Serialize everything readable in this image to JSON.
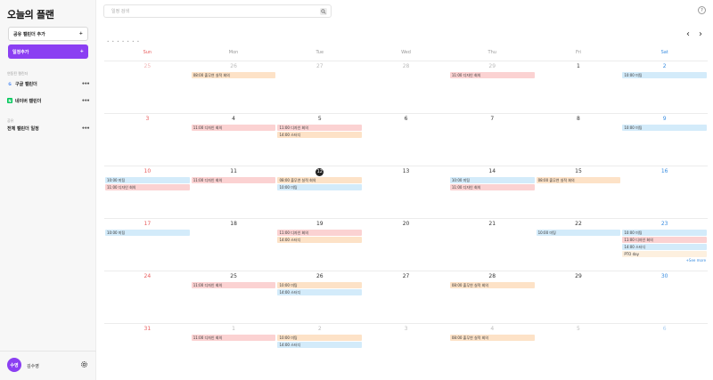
{
  "sidebar": {
    "title": "오늘의 플랜",
    "shared_button": "공유 캘린더 추가",
    "shared_button_icon": "+",
    "add_button": "일정추가",
    "add_button_icon": "+",
    "section_linked": "연동된 캘린더",
    "calendars": [
      {
        "badge": "G",
        "label": "구글 캘린더",
        "more": "•••"
      },
      {
        "badge": "N",
        "label": "네이버 캘린더",
        "more": "•••"
      }
    ],
    "section_all": "공유",
    "all_calendars": {
      "label": "전체 캘린더 일정",
      "more": "•••"
    },
    "user": {
      "avatar": "수영",
      "name": "김수영"
    }
  },
  "topbar": {
    "search_placeholder": "일정 검색",
    "help": "?"
  },
  "nav": {
    "prev": "‹",
    "next": "›",
    "dots": "• • • • • • •"
  },
  "weekdays": [
    "Sun",
    "Mon",
    "Tue",
    "Wed",
    "Thu",
    "Fri",
    "Sat"
  ],
  "weeks": [
    {
      "days": [
        {
          "date": "25",
          "muted": true,
          "events": []
        },
        {
          "date": "26",
          "muted": true,
          "events": [
            {
              "text": "08:00 출무연 실적 회의",
              "color": "orange"
            }
          ]
        },
        {
          "date": "27",
          "muted": true,
          "events": []
        },
        {
          "date": "28",
          "muted": true,
          "events": []
        },
        {
          "date": "29",
          "muted": true,
          "events": [
            {
              "text": "11:00 디자인 회의",
              "color": "red"
            }
          ]
        },
        {
          "date": "1",
          "events": []
        },
        {
          "date": "2",
          "events": [
            {
              "text": "10:00 미팅",
              "color": "blue"
            }
          ]
        }
      ]
    },
    {
      "days": [
        {
          "date": "3",
          "events": []
        },
        {
          "date": "4",
          "events": [
            {
              "text": "11:00 디자인 회의",
              "color": "red"
            }
          ]
        },
        {
          "date": "5",
          "events": [
            {
              "text": "11:00 디자인 회의",
              "color": "red"
            },
            {
              "text": "14:00 스터디",
              "color": "orange"
            }
          ]
        },
        {
          "date": "6",
          "events": []
        },
        {
          "date": "7",
          "events": []
        },
        {
          "date": "8",
          "events": []
        },
        {
          "date": "9",
          "events": [
            {
              "text": "10:00 미팅",
              "color": "blue"
            }
          ]
        }
      ]
    },
    {
      "days": [
        {
          "date": "10",
          "events": [
            {
              "text": "10:00 미팅",
              "color": "blue"
            },
            {
              "text": "11:00 디자인 회의",
              "color": "red"
            }
          ]
        },
        {
          "date": "11",
          "events": [
            {
              "text": "11:00 디자인 회의",
              "color": "red"
            }
          ]
        },
        {
          "date": "12",
          "today": true,
          "events": [
            {
              "text": "08:00 출무연 실적 회의",
              "color": "orange"
            },
            {
              "text": "10:00 미팅",
              "color": "blue"
            }
          ]
        },
        {
          "date": "13",
          "events": []
        },
        {
          "date": "14",
          "events": [
            {
              "text": "10:00 미팅",
              "color": "blue"
            },
            {
              "text": "11:00 디자인 회의",
              "color": "red"
            }
          ]
        },
        {
          "date": "15",
          "events": [
            {
              "text": "08:00 출무연 실적 회의",
              "color": "orange"
            }
          ]
        },
        {
          "date": "16",
          "events": []
        }
      ]
    },
    {
      "days": [
        {
          "date": "17",
          "events": [
            {
              "text": "10:00 미팅",
              "color": "blue"
            }
          ]
        },
        {
          "date": "18",
          "events": []
        },
        {
          "date": "19",
          "events": [
            {
              "text": "11:00 디자인 회의",
              "color": "red"
            },
            {
              "text": "14:00 스터디",
              "color": "orange"
            }
          ]
        },
        {
          "date": "20",
          "events": []
        },
        {
          "date": "21",
          "events": []
        },
        {
          "date": "22",
          "events": [
            {
              "text": "10:00 미팅",
              "color": "blue"
            }
          ]
        },
        {
          "date": "23",
          "events": [
            {
              "text": "10:00 미팅",
              "color": "blue"
            },
            {
              "text": "11:00 디자인 회의",
              "color": "red"
            },
            {
              "text": "14:00 스터디",
              "color": "blue"
            },
            {
              "text": "PTO day",
              "color": "cream"
            }
          ],
          "more": "+See more"
        }
      ]
    },
    {
      "days": [
        {
          "date": "24",
          "events": []
        },
        {
          "date": "25",
          "events": [
            {
              "text": "11:00 디자인 회의",
              "color": "red"
            }
          ]
        },
        {
          "date": "26",
          "events": [
            {
              "text": "10:00 미팅",
              "color": "orange"
            },
            {
              "text": "14:00 스터디",
              "color": "blue"
            }
          ]
        },
        {
          "date": "27",
          "events": []
        },
        {
          "date": "28",
          "events": [
            {
              "text": "08:00 출무연 실적 회의",
              "color": "orange"
            }
          ]
        },
        {
          "date": "29",
          "events": []
        },
        {
          "date": "30",
          "events": []
        }
      ]
    },
    {
      "days": [
        {
          "date": "31",
          "events": []
        },
        {
          "date": "1",
          "muted": true,
          "events": [
            {
              "text": "11:00 디자인 회의",
              "color": "red"
            }
          ]
        },
        {
          "date": "2",
          "muted": true,
          "events": [
            {
              "text": "10:00 미팅",
              "color": "orange"
            },
            {
              "text": "14:00 스터디",
              "color": "blue"
            }
          ]
        },
        {
          "date": "3",
          "muted": true,
          "events": []
        },
        {
          "date": "4",
          "muted": true,
          "events": [
            {
              "text": "08:00 출무연 실적 회의",
              "color": "orange"
            }
          ]
        },
        {
          "date": "5",
          "muted": true,
          "events": []
        },
        {
          "date": "6",
          "muted": true,
          "events": []
        }
      ]
    }
  ]
}
